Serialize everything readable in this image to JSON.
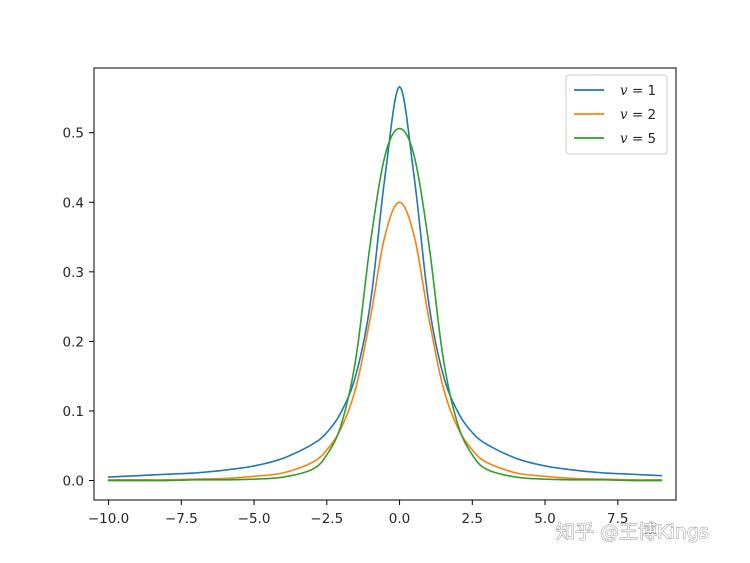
{
  "chart_data": {
    "type": "line",
    "title": "",
    "xlabel": "",
    "ylabel": "",
    "xlim": [
      -10.5,
      9.5
    ],
    "ylim": [
      -0.028,
      0.593
    ],
    "grid": false,
    "legend_position": "top-right",
    "x_ticks": [
      -10.0,
      -7.5,
      -5.0,
      -2.5,
      0.0,
      2.5,
      5.0,
      7.5
    ],
    "x_tick_labels": [
      "−10.0",
      "−7.5",
      "−5.0",
      "−2.5",
      "0.0",
      "2.5",
      "5.0",
      "7.5"
    ],
    "y_ticks": [
      0.0,
      0.1,
      0.2,
      0.3,
      0.4,
      0.5
    ],
    "y_tick_labels": [
      "0.0",
      "0.1",
      "0.2",
      "0.3",
      "0.4",
      "0.5"
    ],
    "x_range_of_data": [
      -10,
      9
    ],
    "series": [
      {
        "name": "v = 1",
        "label_var": "v",
        "label_rest": " = 1",
        "color": "#1f77b4",
        "x": [
          -10,
          -9,
          -8,
          -7,
          -6,
          -5,
          -4,
          -3,
          -2.5,
          -2,
          -1.5,
          -1,
          -0.5,
          0,
          0.5,
          1,
          1.5,
          2,
          2.5,
          3,
          4,
          5,
          6,
          7,
          8,
          9
        ],
        "values": [
          0.005,
          0.007,
          0.009,
          0.011,
          0.015,
          0.021,
          0.032,
          0.052,
          0.069,
          0.099,
          0.152,
          0.256,
          0.437,
          0.566,
          0.437,
          0.256,
          0.152,
          0.099,
          0.069,
          0.052,
          0.032,
          0.021,
          0.015,
          0.011,
          0.009,
          0.007
        ]
      },
      {
        "name": "v = 2",
        "label_var": "v",
        "label_rest": " = 2",
        "color": "#ff7f0e",
        "x": [
          -10,
          -9,
          -8,
          -7,
          -6,
          -5,
          -4,
          -3,
          -2.5,
          -2,
          -1.5,
          -1,
          -0.5,
          0,
          0.5,
          1,
          1.5,
          2,
          2.5,
          3,
          4,
          5,
          6,
          7,
          8,
          9
        ],
        "values": [
          0.001,
          0.001,
          0.001,
          0.002,
          0.003,
          0.006,
          0.011,
          0.026,
          0.044,
          0.076,
          0.134,
          0.235,
          0.352,
          0.4,
          0.352,
          0.235,
          0.134,
          0.076,
          0.044,
          0.026,
          0.011,
          0.006,
          0.003,
          0.002,
          0.001,
          0.001
        ]
      },
      {
        "name": "v = 5",
        "label_var": "v",
        "label_rest": " = 5",
        "color": "#2ca02c",
        "x": [
          -10,
          -9,
          -8,
          -7,
          -6,
          -5,
          -4,
          -3,
          -2.5,
          -2,
          -1.5,
          -1,
          -0.5,
          0,
          0.5,
          1,
          1.5,
          2,
          2.5,
          3,
          4,
          5,
          6,
          7,
          8,
          9
        ],
        "values": [
          0.0,
          0.0,
          0.0,
          0.001,
          0.001,
          0.002,
          0.005,
          0.016,
          0.037,
          0.081,
          0.176,
          0.342,
          0.467,
          0.506,
          0.467,
          0.342,
          0.176,
          0.081,
          0.037,
          0.016,
          0.005,
          0.002,
          0.001,
          0.001,
          0.0,
          0.0
        ]
      }
    ]
  },
  "watermark": {
    "text": "知乎 @王博Kings"
  }
}
